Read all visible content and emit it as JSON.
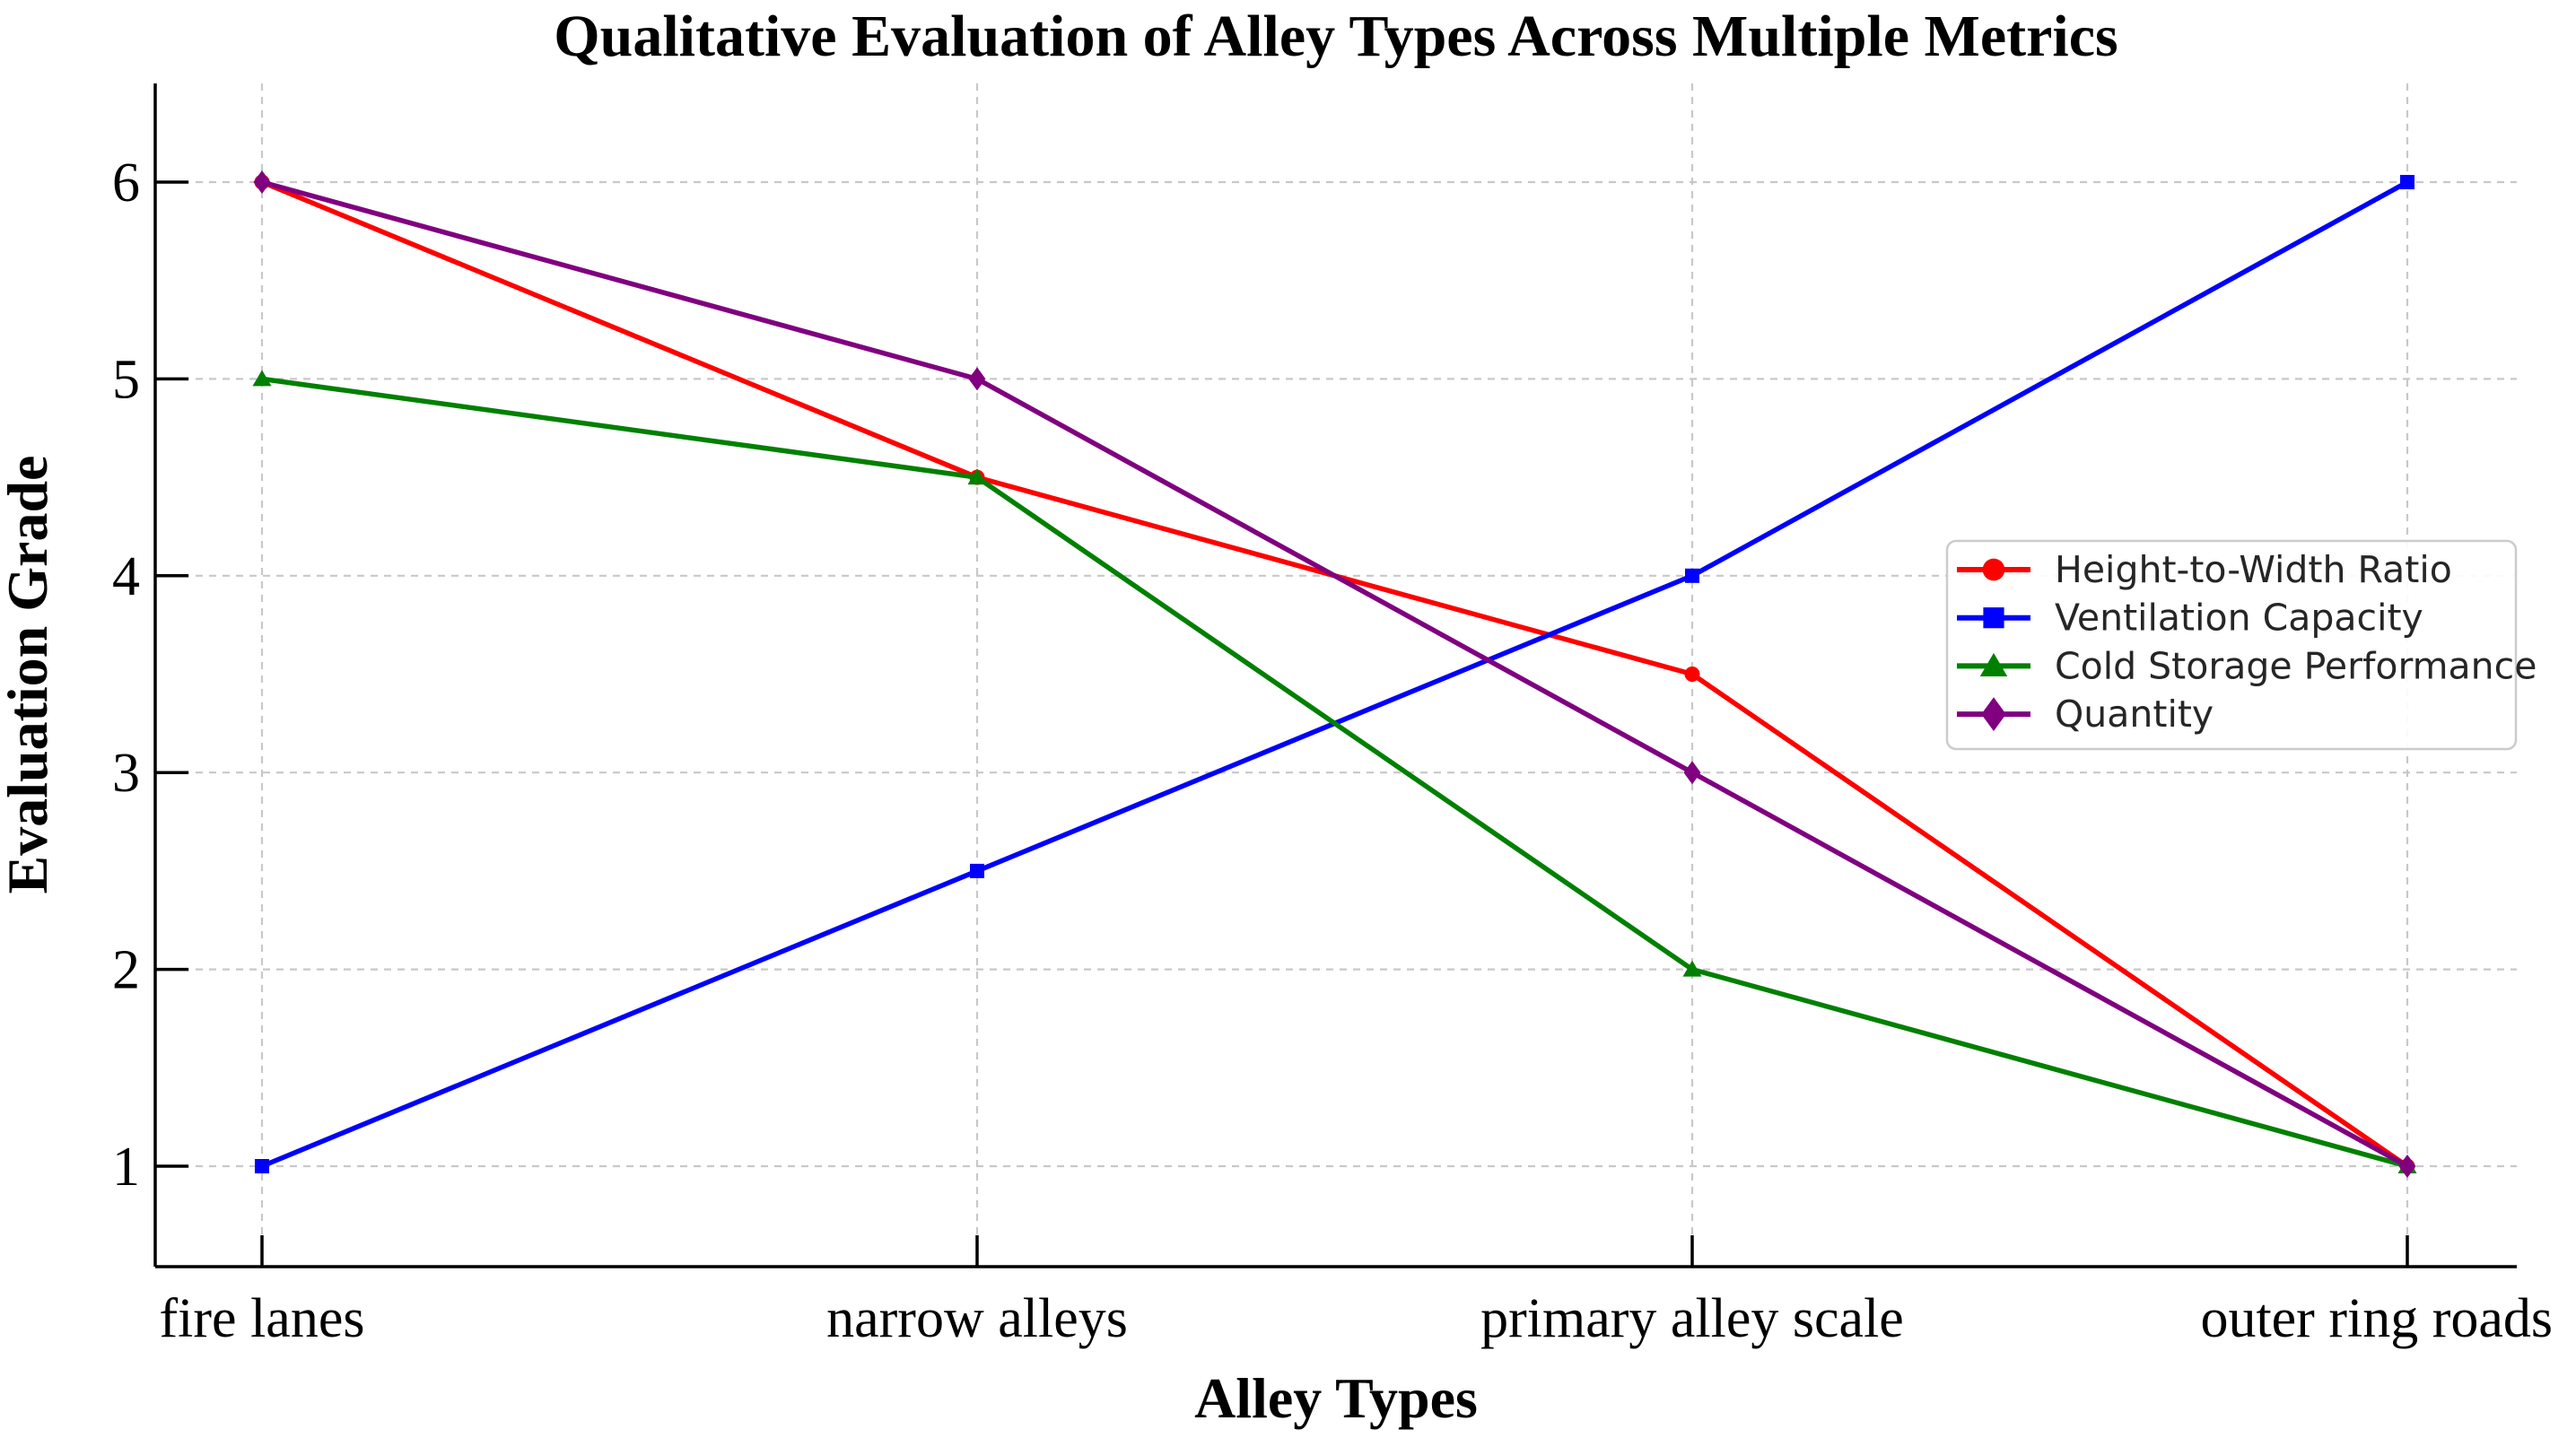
{
  "chart_data": {
    "type": "line",
    "title": "Qualitative Evaluation of Alley Types Across Multiple Metrics",
    "xlabel": "Alley Types",
    "ylabel": "Evaluation Grade",
    "categories": [
      "fire lanes",
      "narrow alleys",
      "primary alley scale",
      "outer ring roads"
    ],
    "yticks": [
      1,
      2,
      3,
      4,
      5,
      6
    ],
    "ylim": [
      0.5,
      6.5
    ],
    "grid": "dashed",
    "legend_position": "center-right",
    "series": [
      {
        "name": "Height-to-Width Ratio",
        "color": "#ff0000",
        "marker": "circle",
        "values": [
          6,
          4.5,
          3.5,
          1
        ]
      },
      {
        "name": "Ventilation Capacity",
        "color": "#0000ff",
        "marker": "square",
        "values": [
          1,
          2.5,
          4,
          6
        ]
      },
      {
        "name": "Cold Storage Performance",
        "color": "#008000",
        "marker": "triangle",
        "values": [
          5,
          4.5,
          2,
          1
        ]
      },
      {
        "name": "Quantity",
        "color": "#800080",
        "marker": "diamond",
        "values": [
          6,
          5,
          3,
          1
        ]
      }
    ],
    "colors": {
      "background": "#ffffff",
      "grid": "#c8c8c8",
      "axis": "#000000",
      "tick_label": "#000000",
      "legend_border": "#cccccc",
      "legend_text": "#262626",
      "legend_background": "#ffffff"
    }
  }
}
